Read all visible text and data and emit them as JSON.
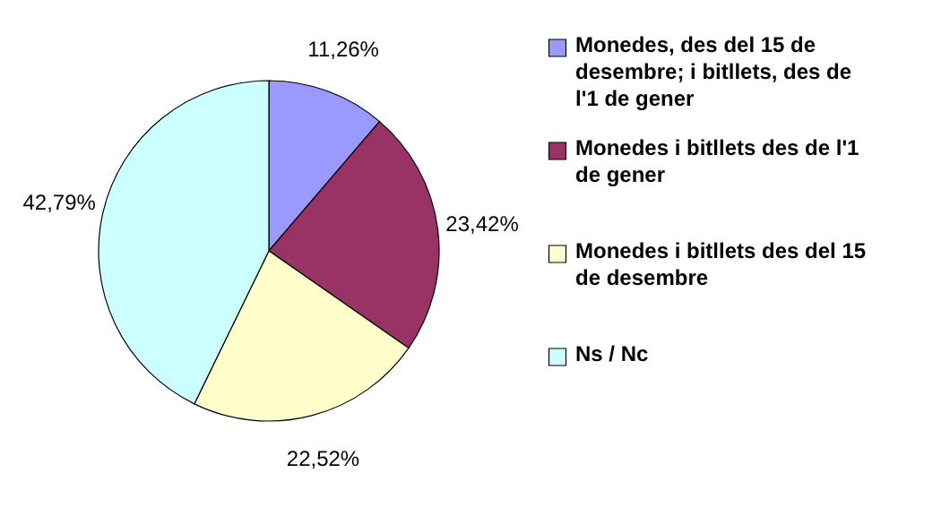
{
  "chart_data": {
    "type": "pie",
    "categories": [
      "Monedes, des del 15 de desembre;  i bitllets, des de l'1 de gener",
      "Monedes i bitllets des de l'1 de gener",
      "Monedes i bitllets des del 15 de desembre",
      "Ns / Nc"
    ],
    "values": [
      11.26,
      23.42,
      22.52,
      42.79
    ],
    "colors": [
      "#9999ff",
      "#993366",
      "#ffffcc",
      "#ccffff"
    ],
    "value_labels": [
      "11,26%",
      "23,42%",
      "22,52%",
      "42,79%"
    ],
    "legend": "right"
  }
}
